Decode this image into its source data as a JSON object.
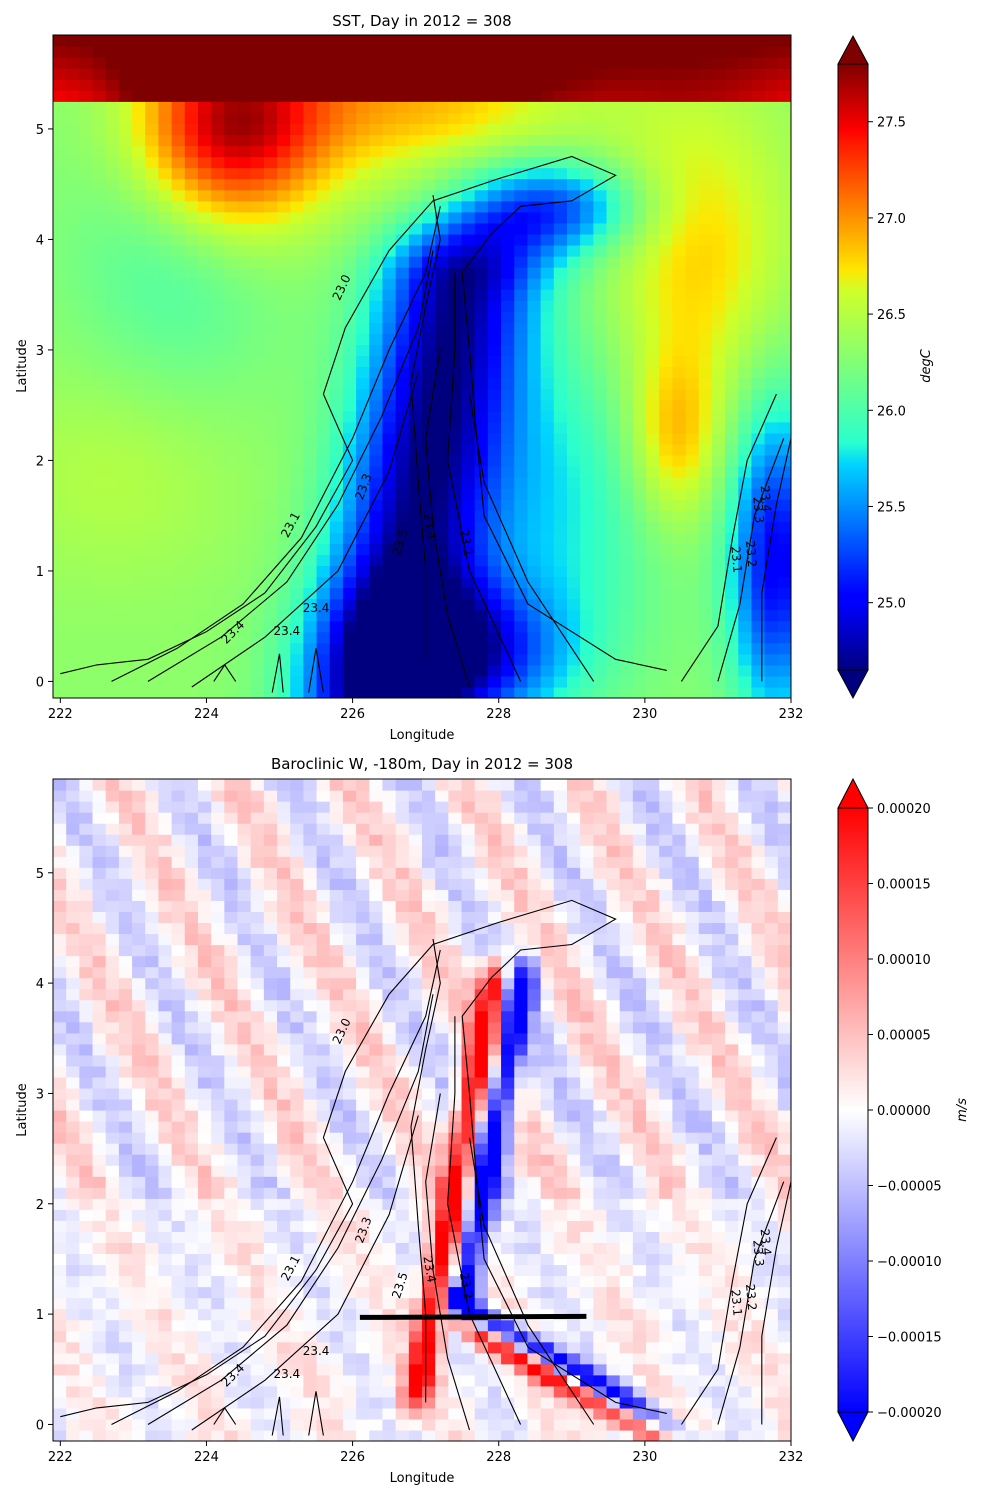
{
  "colors": {
    "sst_contour": "#000000",
    "section_line": "#000000"
  },
  "chart_data": [
    {
      "type": "heatmap",
      "title": "SST, Day in 2012 = 308",
      "xlabel": "Longitude",
      "ylabel": "Latitude",
      "xlim": [
        221.9,
        232.0
      ],
      "ylim": [
        -0.15,
        5.85
      ],
      "xticks": [
        222,
        224,
        226,
        228,
        230,
        232
      ],
      "xtick_labels": [
        "222",
        "224",
        "226",
        "228",
        "230",
        "232"
      ],
      "yticks": [
        0,
        1,
        2,
        3,
        4,
        5
      ],
      "ytick_labels": [
        "0",
        "1",
        "2",
        "3",
        "4",
        "5"
      ],
      "colormap": "jet",
      "colorbar": {
        "label": "degC",
        "vmin": 24.65,
        "vmax": 27.8,
        "extend": "both",
        "ticks": [
          25.0,
          25.5,
          26.0,
          26.5,
          27.0,
          27.5
        ],
        "tick_labels": [
          "25.0",
          "25.5",
          "26.0",
          "26.5",
          "27.0",
          "27.5"
        ]
      },
      "contour_labels": [
        {
          "text": "23.0",
          "x": 225.9,
          "y": 3.55,
          "angle": -65
        },
        {
          "text": "23.1",
          "x": 225.2,
          "y": 1.4,
          "angle": -62
        },
        {
          "text": "23.3",
          "x": 226.2,
          "y": 1.75,
          "angle": -70
        },
        {
          "text": "23.4",
          "x": 225.5,
          "y": 0.63,
          "angle": 0
        },
        {
          "text": "23.4",
          "x": 224.4,
          "y": 0.42,
          "angle": -45
        },
        {
          "text": "23.4",
          "x": 225.1,
          "y": 0.42,
          "angle": 0
        },
        {
          "text": "23.5",
          "x": 226.7,
          "y": 1.25,
          "angle": -72
        },
        {
          "text": "23.4",
          "x": 227.0,
          "y": 1.4,
          "angle": 80
        },
        {
          "text": "23.2",
          "x": 227.5,
          "y": 1.25,
          "angle": 80
        },
        {
          "text": "23.1",
          "x": 231.2,
          "y": 1.1,
          "angle": 85
        },
        {
          "text": "23.2",
          "x": 231.4,
          "y": 1.15,
          "angle": 85
        },
        {
          "text": "23.3",
          "x": 231.5,
          "y": 1.55,
          "angle": 85
        },
        {
          "text": "23.4",
          "x": 231.6,
          "y": 1.65,
          "angle": 85
        }
      ]
    },
    {
      "type": "heatmap",
      "title": "Baroclinic W, -180m, Day in 2012 = 308",
      "xlabel": "Longitude",
      "ylabel": "Latitude",
      "xlim": [
        221.9,
        232.0
      ],
      "ylim": [
        -0.15,
        5.85
      ],
      "xticks": [
        222,
        224,
        226,
        228,
        230,
        232
      ],
      "xtick_labels": [
        "222",
        "224",
        "226",
        "228",
        "230",
        "232"
      ],
      "yticks": [
        0,
        1,
        2,
        3,
        4,
        5
      ],
      "ytick_labels": [
        "0",
        "1",
        "2",
        "3",
        "4",
        "5"
      ],
      "colormap": "bwr",
      "colorbar": {
        "label": "m/s",
        "vmin": -0.0002,
        "vmax": 0.0002,
        "extend": "both",
        "ticks": [
          -0.0002,
          -0.00015,
          -0.0001,
          -5e-05,
          0,
          5e-05,
          0.0001,
          0.00015,
          0.0002
        ],
        "tick_labels": [
          "−0.00020",
          "−0.00015",
          "−0.00010",
          "−0.00005",
          "0.00000",
          "0.00005",
          "0.00010",
          "0.00015",
          "0.00020"
        ]
      },
      "section_line": {
        "x": [
          226.1,
          229.2
        ],
        "y": [
          0.97,
          0.98
        ]
      },
      "contour_labels": [
        {
          "text": "23.0",
          "x": 225.9,
          "y": 3.55,
          "angle": -65
        },
        {
          "text": "23.1",
          "x": 225.2,
          "y": 1.4,
          "angle": -62
        },
        {
          "text": "23.3",
          "x": 226.2,
          "y": 1.75,
          "angle": -70
        },
        {
          "text": "23.4",
          "x": 225.5,
          "y": 0.63,
          "angle": 0
        },
        {
          "text": "23.4",
          "x": 224.4,
          "y": 0.42,
          "angle": -45
        },
        {
          "text": "23.4",
          "x": 225.1,
          "y": 0.42,
          "angle": 0
        },
        {
          "text": "23.5",
          "x": 226.7,
          "y": 1.25,
          "angle": -72
        },
        {
          "text": "23.4",
          "x": 227.0,
          "y": 1.4,
          "angle": 80
        },
        {
          "text": "23.2",
          "x": 227.5,
          "y": 1.25,
          "angle": 80
        },
        {
          "text": "23.1",
          "x": 231.2,
          "y": 1.1,
          "angle": 85
        },
        {
          "text": "23.2",
          "x": 231.4,
          "y": 1.15,
          "angle": 85
        },
        {
          "text": "23.3",
          "x": 231.5,
          "y": 1.55,
          "angle": 85
        },
        {
          "text": "23.4",
          "x": 231.6,
          "y": 1.65,
          "angle": 85
        }
      ]
    }
  ]
}
